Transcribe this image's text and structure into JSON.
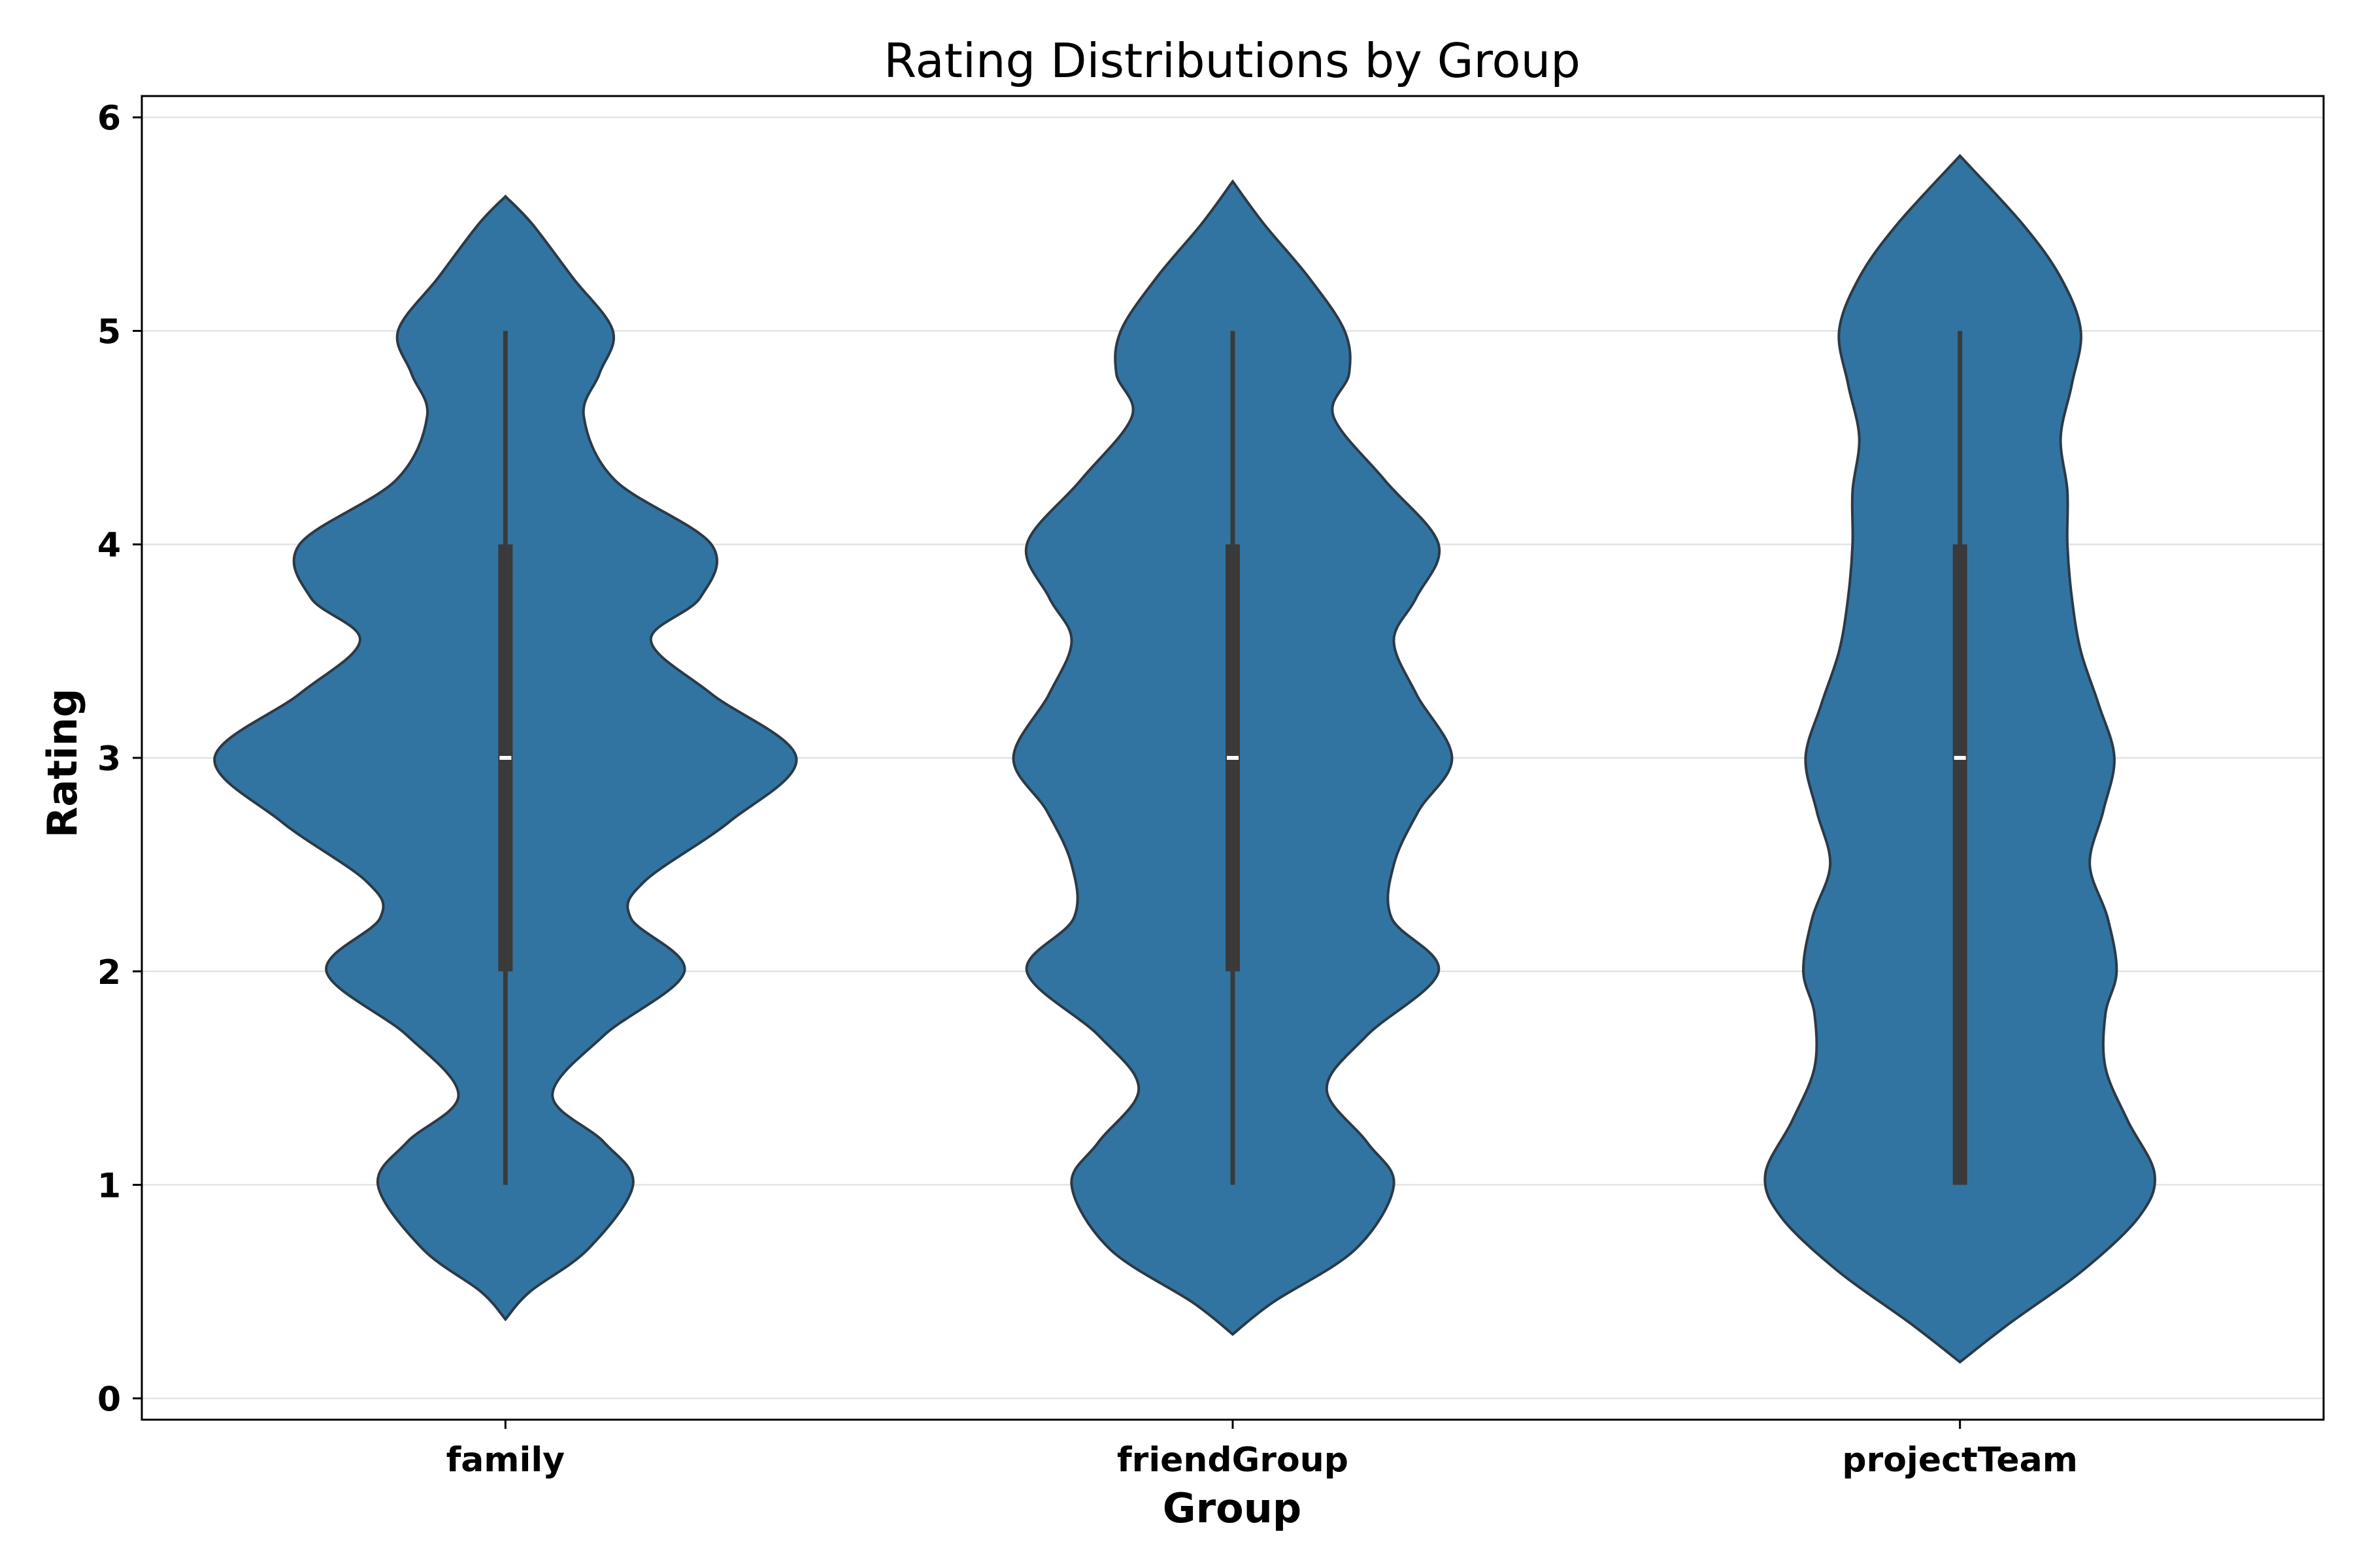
{
  "chart_data": {
    "type": "violin",
    "title": "Rating Distributions by Group",
    "xlabel": "Group",
    "ylabel": "Rating",
    "ylim": [
      -0.1,
      6.1
    ],
    "yticks": [
      0,
      1,
      2,
      3,
      4,
      5,
      6
    ],
    "grid": "horizontal",
    "fill_color": "#3274a1",
    "edge_color": "#2b3a47",
    "box_color": "#3a3a3a",
    "median_color": "#ffffff",
    "categories": [
      "family",
      "friendGroup",
      "projectTeam"
    ],
    "series": [
      {
        "category": "family",
        "min": 1,
        "q1": 2,
        "median": 3,
        "q3": 4,
        "max": 5,
        "density_y": [
          0.37,
          0.5,
          0.7,
          1.0,
          1.2,
          1.42,
          1.7,
          2.0,
          2.25,
          2.42,
          2.7,
          3.0,
          3.3,
          3.55,
          3.75,
          4.0,
          4.3,
          4.6,
          4.8,
          5.0,
          5.25,
          5.5,
          5.63
        ],
        "density_width": [
          0.0,
          0.11,
          0.37,
          0.57,
          0.44,
          0.21,
          0.44,
          0.8,
          0.56,
          0.62,
          1.0,
          1.3,
          0.92,
          0.65,
          0.87,
          0.92,
          0.49,
          0.35,
          0.42,
          0.48,
          0.3,
          0.12,
          0.0
        ]
      },
      {
        "category": "friendGroup",
        "min": 1,
        "q1": 2,
        "median": 3,
        "q3": 4,
        "max": 5,
        "density_y": [
          0.3,
          0.45,
          0.7,
          1.0,
          1.2,
          1.45,
          1.7,
          2.0,
          2.25,
          2.5,
          2.75,
          3.0,
          3.3,
          3.55,
          3.75,
          4.0,
          4.3,
          4.6,
          4.8,
          5.0,
          5.25,
          5.5,
          5.7
        ],
        "density_width": [
          0.0,
          0.18,
          0.55,
          0.72,
          0.6,
          0.42,
          0.6,
          0.92,
          0.71,
          0.72,
          0.83,
          0.98,
          0.82,
          0.72,
          0.82,
          0.92,
          0.68,
          0.45,
          0.52,
          0.5,
          0.34,
          0.14,
          0.0
        ]
      },
      {
        "category": "projectTeam",
        "min": 1,
        "q1": 1,
        "median": 3,
        "q3": 4,
        "max": 5,
        "density_y": [
          0.17,
          0.35,
          0.6,
          0.85,
          1.05,
          1.3,
          1.55,
          1.8,
          2.0,
          2.25,
          2.5,
          2.75,
          3.0,
          3.25,
          3.5,
          3.75,
          4.0,
          4.25,
          4.5,
          4.75,
          5.0,
          5.25,
          5.5,
          5.82
        ],
        "density_width": [
          0.0,
          0.22,
          0.55,
          0.8,
          0.87,
          0.75,
          0.65,
          0.65,
          0.7,
          0.66,
          0.58,
          0.64,
          0.69,
          0.62,
          0.54,
          0.5,
          0.48,
          0.48,
          0.45,
          0.5,
          0.54,
          0.45,
          0.28,
          0.0
        ]
      }
    ]
  }
}
